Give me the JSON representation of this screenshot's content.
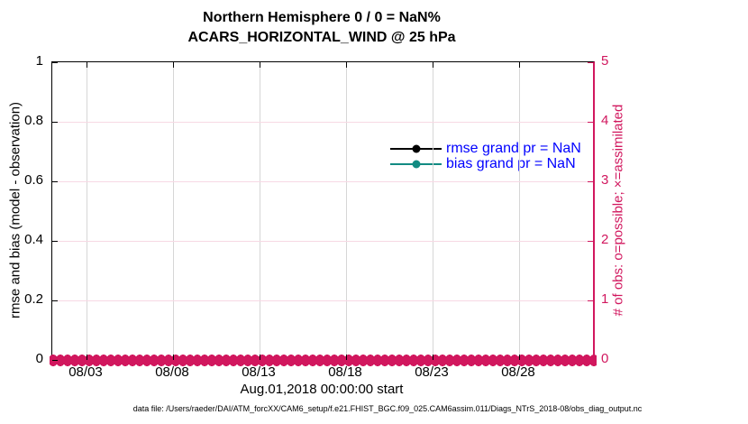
{
  "figure": {
    "caption": "data file: /Users/raeder/DAI/ATM_forcXX/CAM6_setup/f.e21.FHIST_BGC.f09_025.CAM6assim.011/Diags_NTrS_2018-08/obs_diag_output.nc"
  },
  "colors": {
    "crimson": "#d1175e",
    "pink_grid": "#f7d9e4",
    "gray_grid": "#d6d6d6",
    "legend_blue": "#0000ff",
    "rmse_black": "#000000",
    "bias_teal": "#128b82"
  },
  "chart_data": {
    "type": "line",
    "title": "Northern Hemisphere 0 / 0 = NaN%",
    "subtitle": "ACARS_HORIZONTAL_WIND @ 25 hPa",
    "xlabel": "Aug.01,2018 00:00:00 start",
    "ylabel_left": "rmse and bias (model - observation)",
    "ylabel_right": "# of obs: o=possible; ×=assimilated",
    "ylim_left": [
      0,
      1
    ],
    "yticks_left": [
      "0",
      "0.2",
      "0.4",
      "0.6",
      "0.8",
      "1"
    ],
    "ylim_right": [
      0,
      5
    ],
    "yticks_right": [
      "0",
      "1",
      "2",
      "3",
      "4",
      "5"
    ],
    "xlim_days": [
      0,
      31.25
    ],
    "xticks": [
      {
        "label": "08/03",
        "day": 2
      },
      {
        "label": "08/08",
        "day": 7
      },
      {
        "label": "08/13",
        "day": 12
      },
      {
        "label": "08/18",
        "day": 17
      },
      {
        "label": "08/23",
        "day": 22
      },
      {
        "label": "08/28",
        "day": 27
      }
    ],
    "grid": true,
    "legend_position": "top-right-inside",
    "series": [
      {
        "name": "rmse grand pr = NaN",
        "color": "#000000",
        "marker": "circle",
        "values": []
      },
      {
        "name": "bias grand pr = NaN",
        "color": "#128b82",
        "marker": "circle",
        "values": []
      }
    ],
    "obs_count_markers": {
      "description": "o=possible and ×=assimilated markers plotted at count 0 for every time bin across the full x range",
      "value": 0,
      "color": "#d1175e",
      "span_days": [
        0,
        31.25
      ]
    }
  }
}
